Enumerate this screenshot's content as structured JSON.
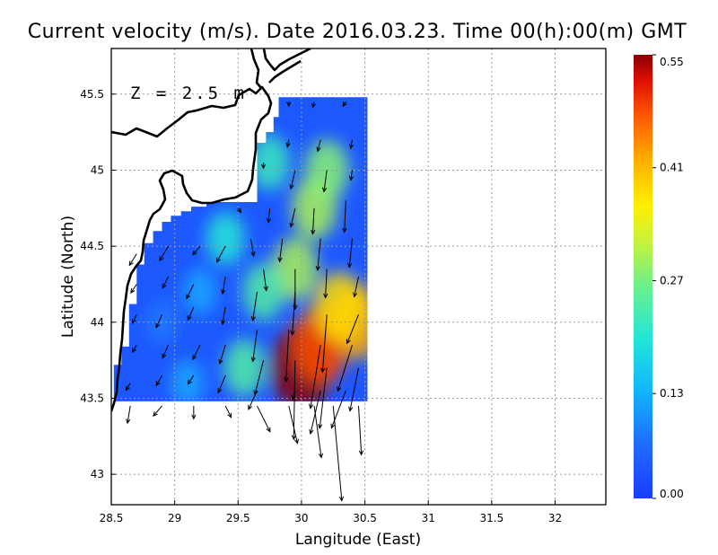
{
  "title": "Current velocity (m/s). Date 2016.03.23. Time 00(h):00(m) GMT",
  "depth_label": "Z = 2.5 m",
  "colors": {
    "land_line": "#000000",
    "grid": "#9a9a9a",
    "background": "#ffffff"
  },
  "chart_data": {
    "type": "heatmap",
    "subtype": "velocity-field-map",
    "xlabel": "Langitude (East)",
    "ylabel": "Latitude (North)",
    "xlim": [
      28.5,
      32.4
    ],
    "ylim": [
      42.8,
      45.8
    ],
    "xticks": [
      28.5,
      29,
      29.5,
      30,
      30.5,
      31,
      31.5,
      32
    ],
    "xtick_labels": [
      "28.5",
      "29",
      "29.5",
      "30",
      "30.5",
      "31",
      "31.5",
      "32"
    ],
    "yticks": [
      43,
      43.5,
      44,
      44.5,
      45,
      45.5
    ],
    "ytick_labels": [
      "43",
      "43.5",
      "44",
      "44.5",
      "45",
      "45.5"
    ],
    "grid": true,
    "colorbar": {
      "min": 0.0,
      "max": 0.55,
      "ticks": [
        0.0,
        0.13,
        0.27,
        0.41,
        0.55
      ],
      "tick_labels": [
        "0.00",
        "0.13",
        "0.27",
        "0.41",
        "0.55"
      ],
      "colormap": "jet"
    },
    "speed_hotspots": [
      {
        "lon": 30.0,
        "lat": 43.7,
        "speed": 0.55
      },
      {
        "lon": 30.15,
        "lat": 43.85,
        "speed": 0.48
      },
      {
        "lon": 30.45,
        "lat": 44.0,
        "speed": 0.42
      },
      {
        "lon": 30.3,
        "lat": 44.1,
        "speed": 0.38
      },
      {
        "lon": 29.95,
        "lat": 44.35,
        "speed": 0.3
      },
      {
        "lon": 30.1,
        "lat": 44.75,
        "speed": 0.3
      },
      {
        "lon": 30.2,
        "lat": 45.0,
        "speed": 0.28
      },
      {
        "lon": 29.7,
        "lat": 44.2,
        "speed": 0.24
      },
      {
        "lon": 29.55,
        "lat": 43.7,
        "speed": 0.24
      },
      {
        "lon": 29.4,
        "lat": 44.55,
        "speed": 0.2
      },
      {
        "lon": 29.75,
        "lat": 45.05,
        "speed": 0.22
      },
      {
        "lon": 29.2,
        "lat": 44.2,
        "speed": 0.12
      },
      {
        "lon": 28.9,
        "lat": 44.0,
        "speed": 0.08
      },
      {
        "lon": 29.1,
        "lat": 43.6,
        "speed": 0.12
      }
    ],
    "vectors": [
      {
        "lon": 29.9,
        "lat": 45.45,
        "u": 0.0,
        "v": -0.03
      },
      {
        "lon": 30.1,
        "lat": 45.45,
        "u": -0.01,
        "v": -0.04
      },
      {
        "lon": 30.35,
        "lat": 45.45,
        "u": -0.02,
        "v": -0.03
      },
      {
        "lon": 29.9,
        "lat": 45.2,
        "u": -0.01,
        "v": -0.05
      },
      {
        "lon": 30.15,
        "lat": 45.2,
        "u": -0.02,
        "v": -0.08
      },
      {
        "lon": 30.4,
        "lat": 45.2,
        "u": -0.01,
        "v": -0.06
      },
      {
        "lon": 29.7,
        "lat": 45.05,
        "u": 0.0,
        "v": -0.04
      },
      {
        "lon": 29.95,
        "lat": 45.0,
        "u": -0.03,
        "v": -0.13
      },
      {
        "lon": 30.2,
        "lat": 45.0,
        "u": -0.02,
        "v": -0.15
      },
      {
        "lon": 30.4,
        "lat": 45.0,
        "u": -0.01,
        "v": -0.07
      },
      {
        "lon": 29.5,
        "lat": 44.75,
        "u": 0.02,
        "v": -0.03
      },
      {
        "lon": 29.75,
        "lat": 44.75,
        "u": -0.01,
        "v": -0.1
      },
      {
        "lon": 29.95,
        "lat": 44.75,
        "u": -0.03,
        "v": -0.13
      },
      {
        "lon": 30.1,
        "lat": 44.75,
        "u": -0.01,
        "v": -0.18
      },
      {
        "lon": 30.35,
        "lat": 44.8,
        "u": -0.01,
        "v": -0.22
      },
      {
        "lon": 29.6,
        "lat": 44.55,
        "u": 0.02,
        "v": -0.12
      },
      {
        "lon": 29.85,
        "lat": 44.55,
        "u": -0.02,
        "v": -0.16
      },
      {
        "lon": 30.15,
        "lat": 44.55,
        "u": -0.02,
        "v": -0.22
      },
      {
        "lon": 30.4,
        "lat": 44.55,
        "u": -0.02,
        "v": -0.2
      },
      {
        "lon": 28.7,
        "lat": 44.45,
        "u": -0.05,
        "v": -0.08
      },
      {
        "lon": 28.95,
        "lat": 44.5,
        "u": -0.06,
        "v": -0.1
      },
      {
        "lon": 29.2,
        "lat": 44.5,
        "u": -0.05,
        "v": -0.06
      },
      {
        "lon": 29.4,
        "lat": 44.5,
        "u": -0.06,
        "v": -0.11
      },
      {
        "lon": 29.7,
        "lat": 44.35,
        "u": 0.02,
        "v": -0.15
      },
      {
        "lon": 29.95,
        "lat": 44.35,
        "u": 0.0,
        "v": -0.28
      },
      {
        "lon": 30.2,
        "lat": 44.35,
        "u": -0.01,
        "v": -0.2
      },
      {
        "lon": 30.45,
        "lat": 44.3,
        "u": -0.03,
        "v": -0.14
      },
      {
        "lon": 28.7,
        "lat": 44.25,
        "u": -0.04,
        "v": -0.06
      },
      {
        "lon": 28.95,
        "lat": 44.3,
        "u": -0.04,
        "v": -0.08
      },
      {
        "lon": 29.15,
        "lat": 44.25,
        "u": -0.05,
        "v": -0.1
      },
      {
        "lon": 29.4,
        "lat": 44.3,
        "u": -0.02,
        "v": -0.12
      },
      {
        "lon": 29.65,
        "lat": 44.2,
        "u": -0.03,
        "v": -0.2
      },
      {
        "lon": 29.95,
        "lat": 44.2,
        "u": -0.02,
        "v": -0.3
      },
      {
        "lon": 30.2,
        "lat": 44.05,
        "u": -0.03,
        "v": -0.4
      },
      {
        "lon": 30.45,
        "lat": 44.05,
        "u": -0.08,
        "v": -0.2
      },
      {
        "lon": 28.7,
        "lat": 44.05,
        "u": -0.03,
        "v": -0.06
      },
      {
        "lon": 28.9,
        "lat": 44.05,
        "u": -0.04,
        "v": -0.09
      },
      {
        "lon": 29.15,
        "lat": 44.1,
        "u": -0.04,
        "v": -0.09
      },
      {
        "lon": 29.4,
        "lat": 44.1,
        "u": -0.02,
        "v": -0.12
      },
      {
        "lon": 29.65,
        "lat": 43.95,
        "u": -0.03,
        "v": -0.22
      },
      {
        "lon": 29.9,
        "lat": 43.95,
        "u": -0.02,
        "v": -0.36
      },
      {
        "lon": 30.15,
        "lat": 43.85,
        "u": -0.07,
        "v": -0.44
      },
      {
        "lon": 30.4,
        "lat": 43.85,
        "u": -0.1,
        "v": -0.32
      },
      {
        "lon": 28.7,
        "lat": 43.85,
        "u": -0.03,
        "v": -0.05
      },
      {
        "lon": 28.95,
        "lat": 43.85,
        "u": -0.04,
        "v": -0.09
      },
      {
        "lon": 29.2,
        "lat": 43.85,
        "u": -0.05,
        "v": -0.1
      },
      {
        "lon": 29.4,
        "lat": 43.85,
        "u": -0.04,
        "v": -0.13
      },
      {
        "lon": 29.7,
        "lat": 43.75,
        "u": -0.06,
        "v": -0.24
      },
      {
        "lon": 29.95,
        "lat": 43.75,
        "u": -0.01,
        "v": -0.55
      },
      {
        "lon": 30.2,
        "lat": 43.7,
        "u": -0.05,
        "v": -0.42
      },
      {
        "lon": 30.45,
        "lat": 43.7,
        "u": -0.06,
        "v": -0.3
      },
      {
        "lon": 28.65,
        "lat": 43.6,
        "u": -0.03,
        "v": -0.05
      },
      {
        "lon": 28.9,
        "lat": 43.65,
        "u": -0.04,
        "v": -0.07
      },
      {
        "lon": 29.15,
        "lat": 43.65,
        "u": -0.04,
        "v": -0.06
      },
      {
        "lon": 29.4,
        "lat": 43.65,
        "u": -0.05,
        "v": -0.12
      },
      {
        "lon": 29.65,
        "lat": 43.55,
        "u": -0.06,
        "v": -0.13
      },
      {
        "lon": 29.95,
        "lat": 43.55,
        "u": -0.02,
        "v": -0.06
      },
      {
        "lon": 30.15,
        "lat": 43.55,
        "u": -0.07,
        "v": -0.3
      },
      {
        "lon": 30.35,
        "lat": 43.55,
        "u": -0.1,
        "v": -0.26
      },
      {
        "lon": 28.65,
        "lat": 43.45,
        "u": -0.02,
        "v": -0.12
      },
      {
        "lon": 28.9,
        "lat": 43.45,
        "u": -0.06,
        "v": -0.07
      },
      {
        "lon": 29.15,
        "lat": 43.45,
        "u": 0.0,
        "v": -0.09
      },
      {
        "lon": 29.4,
        "lat": 43.45,
        "u": 0.04,
        "v": -0.08
      },
      {
        "lon": 29.65,
        "lat": 43.45,
        "u": 0.09,
        "v": -0.18
      },
      {
        "lon": 29.9,
        "lat": 43.45,
        "u": 0.06,
        "v": -0.26
      },
      {
        "lon": 30.1,
        "lat": 43.45,
        "u": 0.05,
        "v": -0.36
      },
      {
        "lon": 30.25,
        "lat": 43.45,
        "u": 0.06,
        "v": -0.66
      },
      {
        "lon": 30.45,
        "lat": 43.45,
        "u": 0.02,
        "v": -0.34
      }
    ]
  }
}
